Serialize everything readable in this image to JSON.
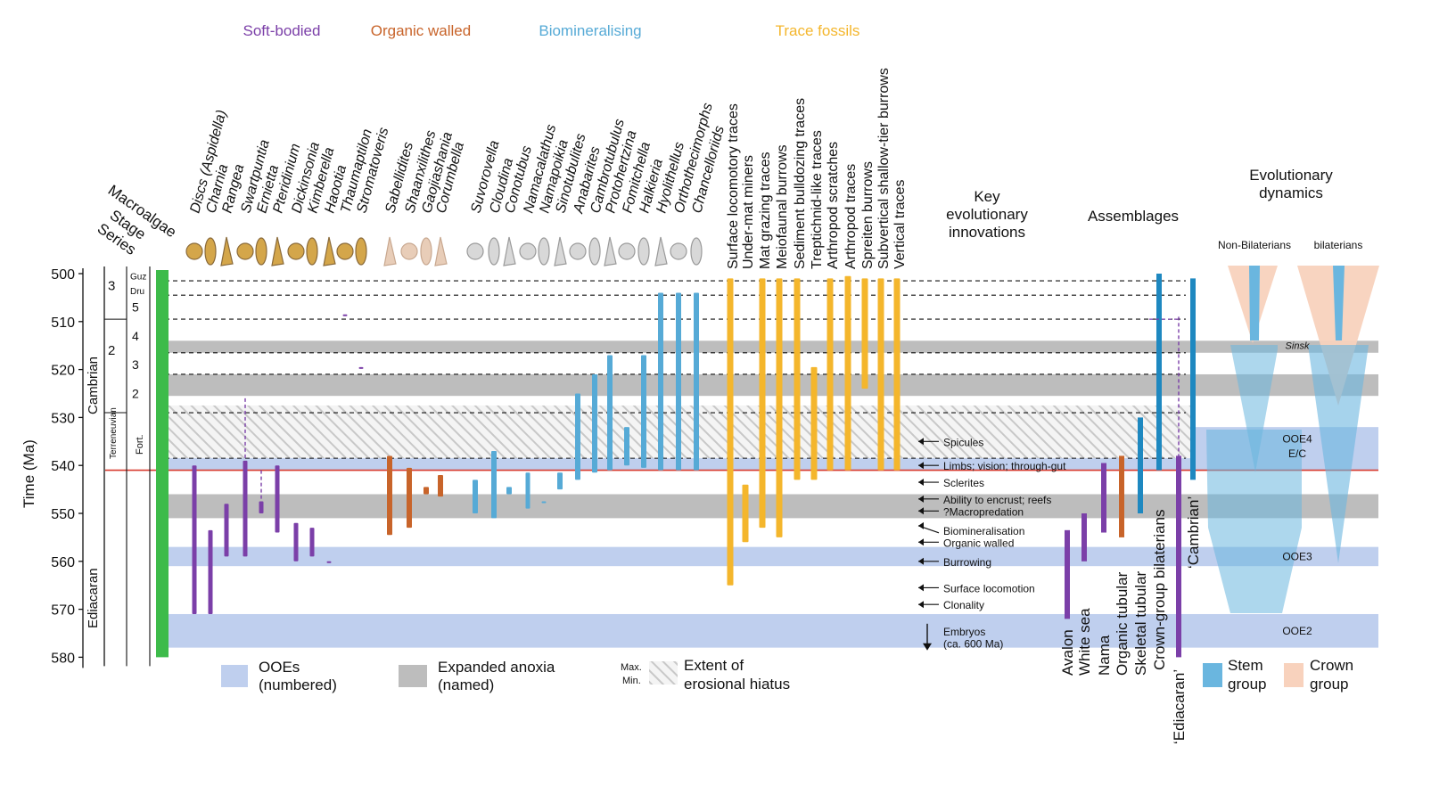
{
  "axis": {
    "label": "Time (Ma)",
    "ticks": [
      500,
      510,
      520,
      530,
      540,
      550,
      560,
      570,
      580
    ]
  },
  "col_headers": {
    "series": "Series",
    "stage": "Stage",
    "macroalgae": "Macroalgae"
  },
  "series_names": {
    "cambrian": "Cambrian",
    "ediacaran": "Ediacaran"
  },
  "sub_series": {
    "terreneuvian": "Terreneuvian",
    "fort": "Fort."
  },
  "stages": [
    {
      "label": "3",
      "age": 502.5
    },
    {
      "label": "2",
      "age": 516
    },
    {
      "label": "5",
      "age": 507
    },
    {
      "label": "4",
      "age": 513
    },
    {
      "label": "3",
      "age": 519
    },
    {
      "label": "2",
      "age": 525
    },
    {
      "label": "Guz",
      "age": 500.3
    },
    {
      "label": "Dru",
      "age": 503.3
    }
  ],
  "groups": [
    {
      "label": "Soft-bodied",
      "color": "#7b3fa8"
    },
    {
      "label": "Organic walled",
      "color": "#c8642a"
    },
    {
      "label": "Biomineralising",
      "color": "#56aad6"
    },
    {
      "label": "Trace fossils",
      "color": "#f4b62c"
    }
  ],
  "taxa": [
    {
      "name": "Discs (Aspidella)",
      "group": 0,
      "italic": true,
      "from": 571,
      "to": 540
    },
    {
      "name": "Charnia",
      "group": 0,
      "italic": true,
      "from": 571,
      "to": 553.5
    },
    {
      "name": "Rangea",
      "group": 0,
      "italic": true,
      "from": 559,
      "to": 548
    },
    {
      "name": "Swartpuntia",
      "group": 0,
      "italic": true,
      "from": 559,
      "to": 539,
      "ext_to": 526
    },
    {
      "name": "Ernietta",
      "group": 0,
      "italic": true,
      "from": 550,
      "to": 547.5,
      "ext_to": 541
    },
    {
      "name": "Pteridinium",
      "group": 0,
      "italic": true,
      "from": 554,
      "to": 540
    },
    {
      "name": "Dickinsonia",
      "group": 0,
      "italic": true,
      "from": 560,
      "to": 552
    },
    {
      "name": "Kimberella",
      "group": 0,
      "italic": true,
      "from": 559,
      "to": 553
    },
    {
      "name": "Haootia",
      "group": 0,
      "italic": true,
      "from": 560,
      "to": 560
    },
    {
      "name": "Thaumaptilon",
      "group": 0,
      "italic": true,
      "from": 508.5,
      "to": 508.5
    },
    {
      "name": "Stromatoveris",
      "group": 0,
      "italic": true,
      "from": 519.5,
      "to": 519.5
    },
    {
      "name": "Sabellidites",
      "group": 1,
      "italic": true,
      "from": 554.5,
      "to": 538
    },
    {
      "name": "Shaanxilithes",
      "group": 1,
      "italic": true,
      "from": 553,
      "to": 540.5
    },
    {
      "name": "Gaojiashania",
      "group": 1,
      "italic": true,
      "from": 546,
      "to": 544.5
    },
    {
      "name": "Corumbella",
      "group": 1,
      "italic": true,
      "from": 546.5,
      "to": 542
    },
    {
      "name": "Suvorovella",
      "group": 2,
      "italic": true,
      "from": 550,
      "to": 543
    },
    {
      "name": "Cloudina",
      "group": 2,
      "italic": true,
      "from": 551,
      "to": 537
    },
    {
      "name": "Conotubus",
      "group": 2,
      "italic": true,
      "from": 546,
      "to": 544.5
    },
    {
      "name": "Namacalathus",
      "group": 2,
      "italic": true,
      "from": 549,
      "to": 541.5
    },
    {
      "name": "Namapoikia",
      "group": 2,
      "italic": true,
      "from": 547.5,
      "to": 547.5
    },
    {
      "name": "Sinotubulites",
      "group": 2,
      "italic": true,
      "from": 545,
      "to": 541.5
    },
    {
      "name": "Anabarites",
      "group": 2,
      "italic": true,
      "from": 543,
      "to": 525
    },
    {
      "name": "Cambrotubulus",
      "group": 2,
      "italic": true,
      "from": 541.5,
      "to": 521
    },
    {
      "name": "Protohertzina",
      "group": 2,
      "italic": true,
      "from": 541,
      "to": 517
    },
    {
      "name": "Fomitchella",
      "group": 2,
      "italic": true,
      "from": 540,
      "to": 532
    },
    {
      "name": "Halkieria",
      "group": 2,
      "italic": true,
      "from": 540.5,
      "to": 517
    },
    {
      "name": "Hyolithellus",
      "group": 2,
      "italic": true,
      "from": 541,
      "to": 504
    },
    {
      "name": "Orthothecimorphs",
      "group": 2,
      "italic": true,
      "from": 541,
      "to": 504
    },
    {
      "name": "Chancelloriids",
      "group": 2,
      "italic": true,
      "from": 541,
      "to": 504
    },
    {
      "name": "Surface locomotory traces",
      "group": 3,
      "italic": false,
      "from": 565,
      "to": 501
    },
    {
      "name": "Under-mat miners",
      "group": 3,
      "italic": false,
      "from": 556,
      "to": 544
    },
    {
      "name": "Mat grazing traces",
      "group": 3,
      "italic": false,
      "from": 553,
      "to": 501
    },
    {
      "name": "Meiofaunal burrows",
      "group": 3,
      "italic": false,
      "from": 555,
      "to": 501
    },
    {
      "name": "Sediment bulldozing traces",
      "group": 3,
      "italic": false,
      "from": 543,
      "to": 501
    },
    {
      "name": "Treptichnid-like traces",
      "group": 3,
      "italic": false,
      "from": 543,
      "to": 519.5
    },
    {
      "name": "Arthropod scratches",
      "group": 3,
      "italic": false,
      "from": 541,
      "to": 501
    },
    {
      "name": "Arthropod traces",
      "group": 3,
      "italic": false,
      "from": 541,
      "to": 500.5
    },
    {
      "name": "Spreiten burrows",
      "group": 3,
      "italic": false,
      "from": 524,
      "to": 501
    },
    {
      "name": "Subvertical shallow-tier burrows",
      "group": 3,
      "italic": false,
      "from": 541,
      "to": 501
    },
    {
      "name": "Vertical traces",
      "group": 3,
      "italic": false,
      "from": 541,
      "to": 501
    }
  ],
  "innovations": {
    "title": [
      "Key",
      "evolutionary",
      "innovations"
    ],
    "items": [
      {
        "label": "Spicules",
        "age": 535
      },
      {
        "label": "Limbs; vision; through-gut",
        "age": 540
      },
      {
        "label": "Sclerites",
        "age": 543.5
      },
      {
        "label": "Ability to encrust; reefs",
        "age": 547
      },
      {
        "label": "?Macropredation",
        "age": 549.5
      },
      {
        "label": "Biomineralisation",
        "age": 553.5
      },
      {
        "label": "Organic walled",
        "age": 556
      },
      {
        "label": "Burrowing",
        "age": 560
      },
      {
        "label": "Surface locomotion",
        "age": 565.5
      },
      {
        "label": "Clonality",
        "age": 569
      },
      {
        "label": "Embryos",
        "age": 574.5
      },
      {
        "label": "(ca. 600 Ma)",
        "age": 577
      }
    ]
  },
  "assemblages": {
    "title": "Assemblages",
    "items": [
      {
        "label": "Avalon",
        "from": 572,
        "to": 553.5,
        "color": "#7b3fa8"
      },
      {
        "label": "White sea",
        "from": 560,
        "to": 550,
        "color": "#7b3fa8"
      },
      {
        "label": "Nama",
        "from": 554,
        "to": 539.5,
        "color": "#7b3fa8"
      },
      {
        "label": "Organic tubular",
        "from": 555,
        "to": 538,
        "color": "#c8642a"
      },
      {
        "label": "Skeletal tubular",
        "from": 550,
        "to": 530,
        "color": "#1e88c0"
      },
      {
        "label": "Crown-group bilaterians",
        "from": 541,
        "to": 500,
        "color": "#1e88c0"
      },
      {
        "label": "‘Ediacaran’",
        "from": 580,
        "to": 538,
        "ext_to": 509,
        "color": "#7b3fa8"
      },
      {
        "label": "‘Cambrian’",
        "from": 543,
        "to": 501,
        "color": "#1e88c0"
      }
    ]
  },
  "dynamics": {
    "title": [
      "Evolutionary",
      "dynamics"
    ],
    "non_bilaterians": "Non-Bilaterians",
    "bilaterians": "bilaterians",
    "sinsk": "Sinsk",
    "ooe4": "OOE4",
    "ec": "E/C",
    "ooe3": "OOE3",
    "ooe2": "OOE2"
  },
  "bands": {
    "ooe": [
      {
        "from": 532,
        "to": 541
      },
      {
        "from": 557,
        "to": 561
      },
      {
        "from": 571,
        "to": 578
      }
    ],
    "anoxia": [
      {
        "from": 514,
        "to": 516.5
      },
      {
        "from": 521,
        "to": 525.5
      },
      {
        "from": 546,
        "to": 551
      }
    ],
    "hatch": {
      "from": 527.5,
      "to": 538.5
    },
    "dashed_ages": [
      501.5,
      504.5,
      509.5,
      516.5,
      521,
      529,
      538.5
    ],
    "boundary_age": 541
  },
  "legend": {
    "ooe": [
      "OOEs",
      "(numbered)"
    ],
    "anoxia": [
      "Expanded anoxia",
      "(named)"
    ],
    "hiatus": [
      "Extent of",
      "erosional hiatus"
    ],
    "max": "Max.",
    "min": "Min.",
    "stem": [
      "Stem",
      "group"
    ],
    "crown": [
      "Crown",
      "group"
    ]
  },
  "colors": {
    "ooe": "#bfcfee",
    "anoxia": "#bdbdbd",
    "macroalgae": "#3dbb4a",
    "boundary": "#d83a2e",
    "stem": "#6ab6df",
    "crown": "#f8d2bd"
  }
}
